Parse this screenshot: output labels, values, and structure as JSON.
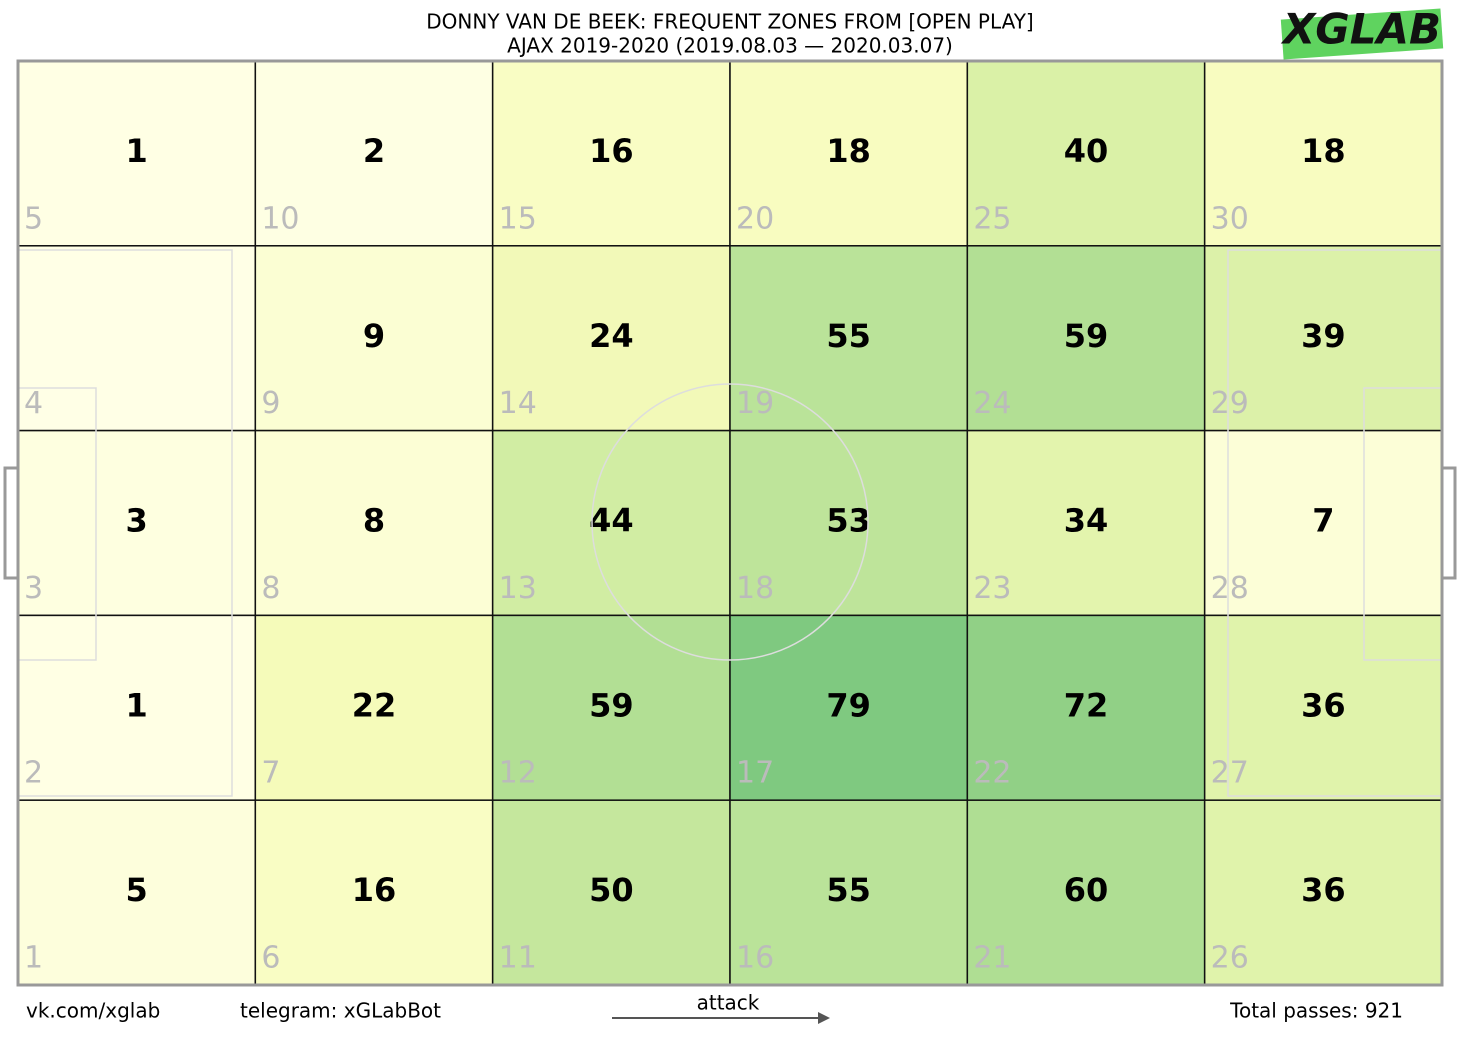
{
  "chart_data": {
    "type": "heatmap",
    "title": "DONNY VAN DE BEEK: FREQUENT ZONES FROM [OPEN PLAY]",
    "subtitle": "AJAX 2019-2020 (2019.08.03 — 2020.03.07)",
    "logo": "XGLAB",
    "colormap": [
      "#ffffe5",
      "#f7fcb9",
      "#d9f0a3",
      "#addd8e",
      "#78c679"
    ],
    "rows": [
      {
        "zones": [
          5,
          10,
          15,
          20,
          25,
          30
        ],
        "values": [
          1,
          2,
          16,
          18,
          40,
          18
        ]
      },
      {
        "zones": [
          4,
          9,
          14,
          19,
          24,
          29
        ],
        "values": [
          null,
          9,
          24,
          55,
          59,
          39
        ]
      },
      {
        "zones": [
          3,
          8,
          13,
          18,
          23,
          28
        ],
        "values": [
          3,
          8,
          44,
          53,
          34,
          7
        ]
      },
      {
        "zones": [
          2,
          7,
          12,
          17,
          22,
          27
        ],
        "values": [
          1,
          22,
          59,
          79,
          72,
          36
        ]
      },
      {
        "zones": [
          1,
          6,
          11,
          16,
          21,
          26
        ],
        "values": [
          5,
          16,
          50,
          55,
          60,
          36
        ]
      }
    ],
    "footer": {
      "site": "vk.com/xglab",
      "telegram": "telegram: xGLabBot",
      "direction": "attack",
      "total": "Total passes: 921"
    }
  }
}
